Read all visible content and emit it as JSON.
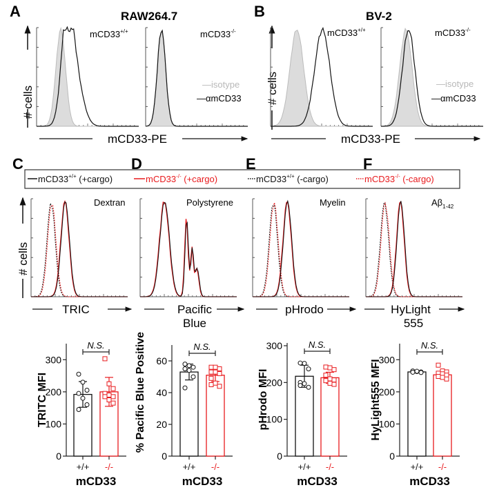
{
  "colors": {
    "black": "#111111",
    "red": "#e8191c",
    "isotype_fill": "#d9d9d9",
    "isotype_line": "#b8b8b8"
  },
  "panels": {
    "A": {
      "letter": "A",
      "title": "RAW264.7",
      "sub_left": "mCD33",
      "sub_left_sup": "+/+",
      "sub_right": "mCD33",
      "sub_right_sup": "-/-",
      "ylabel": "# cells",
      "xlabel": "mCD33-PE",
      "legend": {
        "isotype": "isotype",
        "antibody": "αmCD33"
      }
    },
    "B": {
      "letter": "B",
      "title": "BV-2",
      "sub_left": "mCD33",
      "sub_left_sup": "+/+",
      "sub_right": "mCD33",
      "sub_right_sup": "-/-",
      "ylabel": "# cells",
      "xlabel": "mCD33-PE",
      "legend": {
        "isotype": "isotype",
        "antibody": "αmCD33"
      }
    },
    "C": {
      "letter": "C",
      "cargo": "Dextran",
      "xlabel": "TRIC"
    },
    "D": {
      "letter": "D",
      "cargo": "Polystyrene",
      "xlabel_line1": "Pacific",
      "xlabel_line2": "Blue"
    },
    "E": {
      "letter": "E",
      "cargo": "Myelin",
      "xlabel": "pHrodo"
    },
    "F": {
      "letter": "F",
      "cargo": "Aβ",
      "cargo_sub": "1-42",
      "xlabel_line1": "HyLight",
      "xlabel_line2": "555"
    }
  },
  "cargo_legend": [
    {
      "label": "mCD33",
      "sup": "+/+",
      "suffix": " (+cargo)",
      "color": "#111111",
      "dash": "solid"
    },
    {
      "label": "mCD33",
      "sup": "-/-",
      "suffix": " (+cargo)",
      "color": "#e8191c",
      "dash": "solid"
    },
    {
      "label": "mCD33",
      "sup": "+/+",
      "suffix": " (-cargo)",
      "color": "#111111",
      "dash": "dotted"
    },
    {
      "label": "mCD33",
      "sup": "-/-",
      "suffix": " (-cargo)",
      "color": "#e8191c",
      "dash": "dotted"
    }
  ],
  "hist_ylabel": "# cells",
  "chart_data": [
    {
      "type": "bar",
      "panel": "C",
      "ylabel": "TRITC MFI",
      "xlabel": "mCD33",
      "categories": [
        "+/+",
        "-/-"
      ],
      "ylim": [
        0,
        350
      ],
      "yticks": [
        0,
        100,
        200,
        300
      ],
      "series": [
        {
          "name": "+/+",
          "mean": 192,
          "sd": 40,
          "points": [
            255,
            230,
            205,
            195,
            180,
            160,
            145
          ]
        },
        {
          "name": "-/-",
          "mean": 200,
          "sd": 45,
          "points": [
            303,
            225,
            210,
            195,
            190,
            185,
            185,
            175,
            165
          ]
        }
      ],
      "significance": "N.S."
    },
    {
      "type": "bar",
      "panel": "D",
      "ylabel": "% Pacific Blue Positive",
      "xlabel": "mCD33",
      "categories": [
        "+/+",
        "-/-"
      ],
      "ylim": [
        0,
        70
      ],
      "yticks": [
        0,
        20,
        40,
        60
      ],
      "series": [
        {
          "name": "+/+",
          "mean": 53,
          "sd": 5,
          "points": [
            58,
            57,
            56,
            55,
            54,
            50,
            43
          ]
        },
        {
          "name": "-/-",
          "mean": 51,
          "sd": 4,
          "points": [
            56,
            56,
            55,
            53,
            53,
            52,
            49,
            46,
            44,
            45
          ]
        }
      ],
      "significance": "N.S."
    },
    {
      "type": "bar",
      "panel": "E",
      "ylabel": "pHrodo MFI",
      "xlabel": "mCD33",
      "categories": [
        "+/+",
        "-/-"
      ],
      "ylim": [
        0,
        300
      ],
      "yticks": [
        0,
        100,
        200,
        300
      ],
      "series": [
        {
          "name": "+/+",
          "mean": 217,
          "sd": 30,
          "points": [
            253,
            252,
            237,
            200,
            197,
            187,
            192
          ]
        },
        {
          "name": "-/-",
          "mean": 213,
          "sd": 15,
          "points": [
            242,
            240,
            235,
            220,
            210,
            207,
            205,
            198,
            195
          ]
        }
      ],
      "significance": "N.S."
    },
    {
      "type": "bar",
      "panel": "F",
      "ylabel": "HyLight555 MFI",
      "xlabel": "mCD33",
      "categories": [
        "+/+",
        "-/-"
      ],
      "ylim": [
        0,
        350
      ],
      "yticks": [
        0,
        100,
        200,
        300
      ],
      "series": [
        {
          "name": "+/+",
          "mean": 262,
          "sd": 3,
          "points": [
            265,
            263,
            262,
            261,
            264,
            260
          ]
        },
        {
          "name": "-/-",
          "mean": 253,
          "sd": 10,
          "points": [
            283,
            265,
            262,
            258,
            256,
            252,
            248,
            245,
            240
          ]
        }
      ],
      "significance": "N.S."
    }
  ]
}
